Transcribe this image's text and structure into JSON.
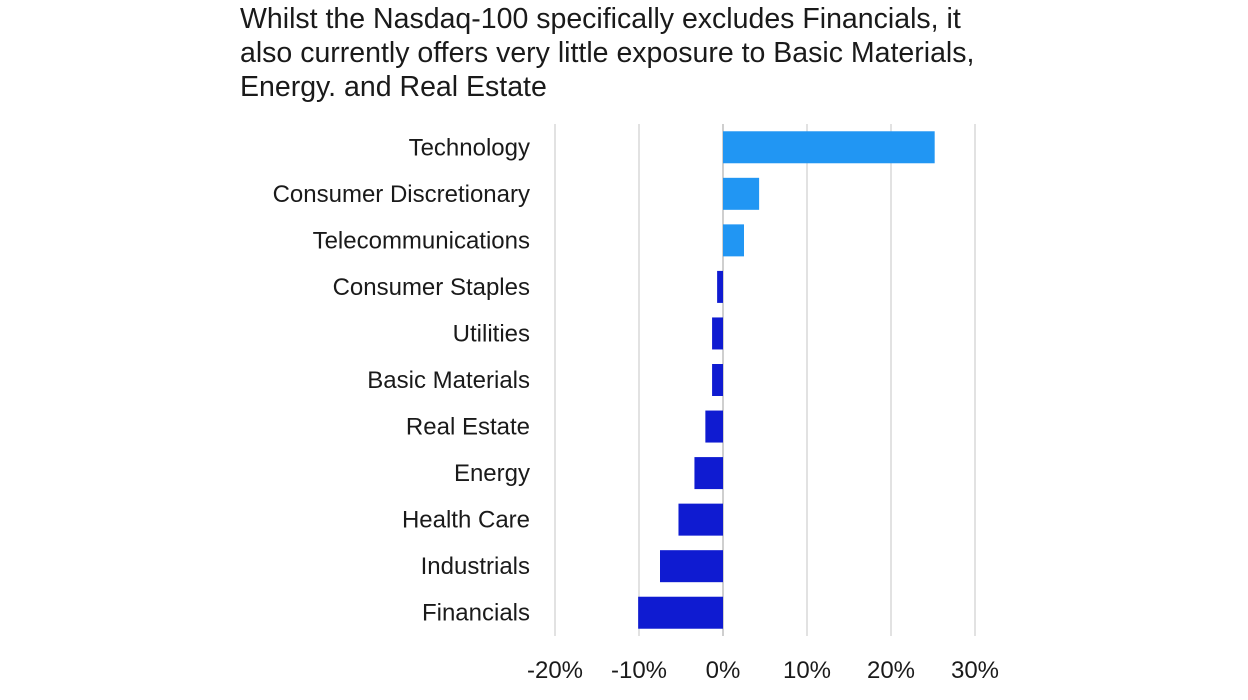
{
  "chart_data": {
    "type": "bar",
    "orientation": "horizontal",
    "title_lines": [
      "Whilst the Nasdaq-100 specifically excludes Financials, it",
      "also currently offers very little exposure to Basic Materials,",
      "Energy. and Real Estate"
    ],
    "categories": [
      "Technology",
      "Consumer Discretionary",
      "Telecommunications",
      "Consumer Staples",
      "Utilities",
      "Basic Materials",
      "Real Estate",
      "Energy",
      "Health Care",
      "Industrials",
      "Financials"
    ],
    "values": [
      25.2,
      4.3,
      2.5,
      -0.7,
      -1.3,
      -1.3,
      -2.1,
      -3.4,
      -5.3,
      -7.5,
      -10.1
    ],
    "xlim": [
      -20,
      30
    ],
    "xticks": [
      -20,
      -10,
      0,
      10,
      20,
      30
    ],
    "tick_labels": [
      "-20%",
      "-10%",
      "0%",
      "10%",
      "20%",
      "30%"
    ],
    "xlabel": "",
    "ylabel": "",
    "grid": "vertical",
    "legend": "none",
    "colors": {
      "positive": "#2196f3",
      "negative": "#0f1bd1",
      "grid": "#e2e2e2",
      "zero_line": "#cfcfcf"
    }
  }
}
